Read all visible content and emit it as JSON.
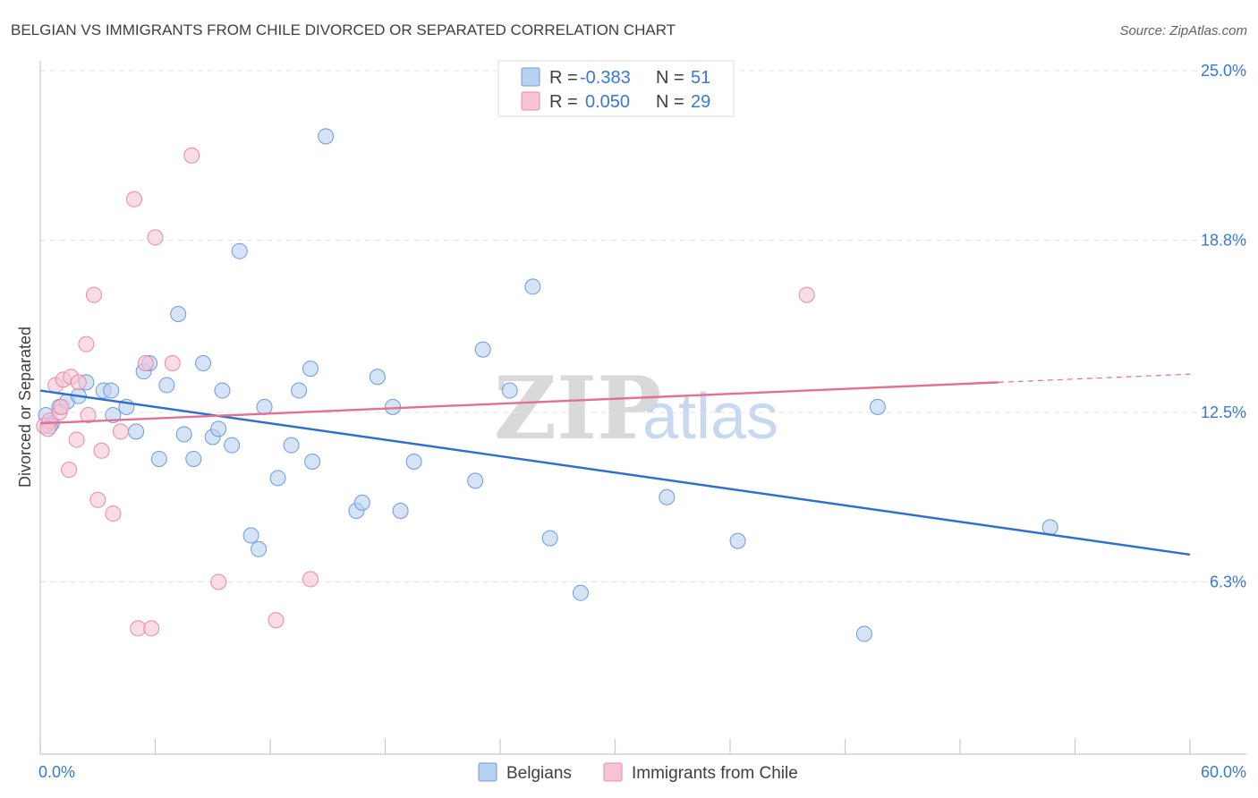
{
  "title": "BELGIAN VS IMMIGRANTS FROM CHILE DIVORCED OR SEPARATED CORRELATION CHART",
  "source": "Source: ZipAtlas.com",
  "watermark": {
    "zip": "ZIP",
    "atlas": "atlas"
  },
  "colors": {
    "belgians_fill": "#b9d1f1",
    "belgians_stroke": "#6f9ad6",
    "belgians_line": "#2f6fce",
    "chile_fill": "#f7c4d3",
    "chile_stroke": "#e58aa8",
    "chile_line": "#e0718f",
    "grid": "#e3e3e3",
    "axis_text": "#3b78cf"
  },
  "legend": {
    "row1": {
      "r_label": "R = ",
      "r_value": "-0.383",
      "n_label": "N = ",
      "n_value": "51"
    },
    "row2": {
      "r_label": "R = ",
      "r_value": "0.050",
      "n_label": "N = ",
      "n_value": "29"
    }
  },
  "bottom_legend": {
    "series1": "Belgians",
    "series2": "Immigrants from Chile"
  },
  "chart_data": {
    "type": "scatter",
    "xlabel": "",
    "ylabel": "Divorced or Separated",
    "xlim": [
      0,
      60
    ],
    "ylim": [
      0,
      25
    ],
    "x_tick_labels": {
      "min": "0.0%",
      "max": "60.0%"
    },
    "y_ticks": [
      {
        "value": 25.0,
        "label": "25.0%"
      },
      {
        "value": 18.8,
        "label": "18.8%"
      },
      {
        "value": 12.5,
        "label": "12.5%"
      },
      {
        "value": 6.3,
        "label": "6.3%"
      }
    ],
    "grid": true,
    "legend_position": "top-center",
    "series": [
      {
        "name": "Belgians",
        "r": -0.383,
        "n": 51,
        "trend": {
          "x": [
            0,
            60
          ],
          "y": [
            13.3,
            7.3
          ]
        },
        "points": [
          [
            0.3,
            12.4
          ],
          [
            0.6,
            12.1
          ],
          [
            1.0,
            12.7
          ],
          [
            1.4,
            12.9
          ],
          [
            2.0,
            13.1
          ],
          [
            2.4,
            13.6
          ],
          [
            3.3,
            13.3
          ],
          [
            3.7,
            13.3
          ],
          [
            3.8,
            12.4
          ],
          [
            4.5,
            12.7
          ],
          [
            5.0,
            11.8
          ],
          [
            5.4,
            14.0
          ],
          [
            5.7,
            14.3
          ],
          [
            6.2,
            10.8
          ],
          [
            6.6,
            13.5
          ],
          [
            7.2,
            16.1
          ],
          [
            7.5,
            11.7
          ],
          [
            8.0,
            10.8
          ],
          [
            8.5,
            14.3
          ],
          [
            9.0,
            11.6
          ],
          [
            9.3,
            11.9
          ],
          [
            9.5,
            13.3
          ],
          [
            10.0,
            11.3
          ],
          [
            10.4,
            18.4
          ],
          [
            11.0,
            8.0
          ],
          [
            11.4,
            7.5
          ],
          [
            11.7,
            12.7
          ],
          [
            12.4,
            10.1
          ],
          [
            13.1,
            11.3
          ],
          [
            13.5,
            13.3
          ],
          [
            14.1,
            14.1
          ],
          [
            14.2,
            10.7
          ],
          [
            14.9,
            22.6
          ],
          [
            16.5,
            8.9
          ],
          [
            16.8,
            9.2
          ],
          [
            17.6,
            13.8
          ],
          [
            18.4,
            12.7
          ],
          [
            18.8,
            8.9
          ],
          [
            19.5,
            10.7
          ],
          [
            22.7,
            10.0
          ],
          [
            23.1,
            14.8
          ],
          [
            24.5,
            13.3
          ],
          [
            25.7,
            17.1
          ],
          [
            26.6,
            7.9
          ],
          [
            28.2,
            5.9
          ],
          [
            32.7,
            9.4
          ],
          [
            36.4,
            7.8
          ],
          [
            43.0,
            4.4
          ],
          [
            43.7,
            12.7
          ],
          [
            52.7,
            8.3
          ],
          [
            0.5,
            12.0
          ]
        ]
      },
      {
        "name": "Immigrants from Chile",
        "r": 0.05,
        "n": 29,
        "trend": {
          "x": [
            0,
            50
          ],
          "y": [
            12.1,
            13.6
          ],
          "dashed_to": [
            60,
            13.9
          ]
        },
        "points": [
          [
            0.2,
            12.0
          ],
          [
            0.5,
            12.2
          ],
          [
            0.8,
            13.5
          ],
          [
            1.0,
            12.5
          ],
          [
            1.2,
            13.7
          ],
          [
            1.5,
            10.4
          ],
          [
            1.6,
            13.8
          ],
          [
            1.9,
            11.5
          ],
          [
            2.0,
            13.6
          ],
          [
            2.4,
            15.0
          ],
          [
            2.5,
            12.4
          ],
          [
            2.8,
            16.8
          ],
          [
            3.0,
            9.3
          ],
          [
            3.2,
            11.1
          ],
          [
            3.8,
            8.8
          ],
          [
            4.2,
            11.8
          ],
          [
            4.9,
            20.3
          ],
          [
            5.1,
            4.6
          ],
          [
            5.5,
            14.3
          ],
          [
            5.8,
            4.6
          ],
          [
            6.0,
            18.9
          ],
          [
            6.9,
            14.3
          ],
          [
            7.9,
            21.9
          ],
          [
            9.3,
            6.3
          ],
          [
            12.3,
            4.9
          ],
          [
            14.1,
            6.4
          ],
          [
            40.0,
            16.8
          ],
          [
            0.4,
            11.9
          ],
          [
            1.1,
            12.7
          ]
        ]
      }
    ]
  }
}
